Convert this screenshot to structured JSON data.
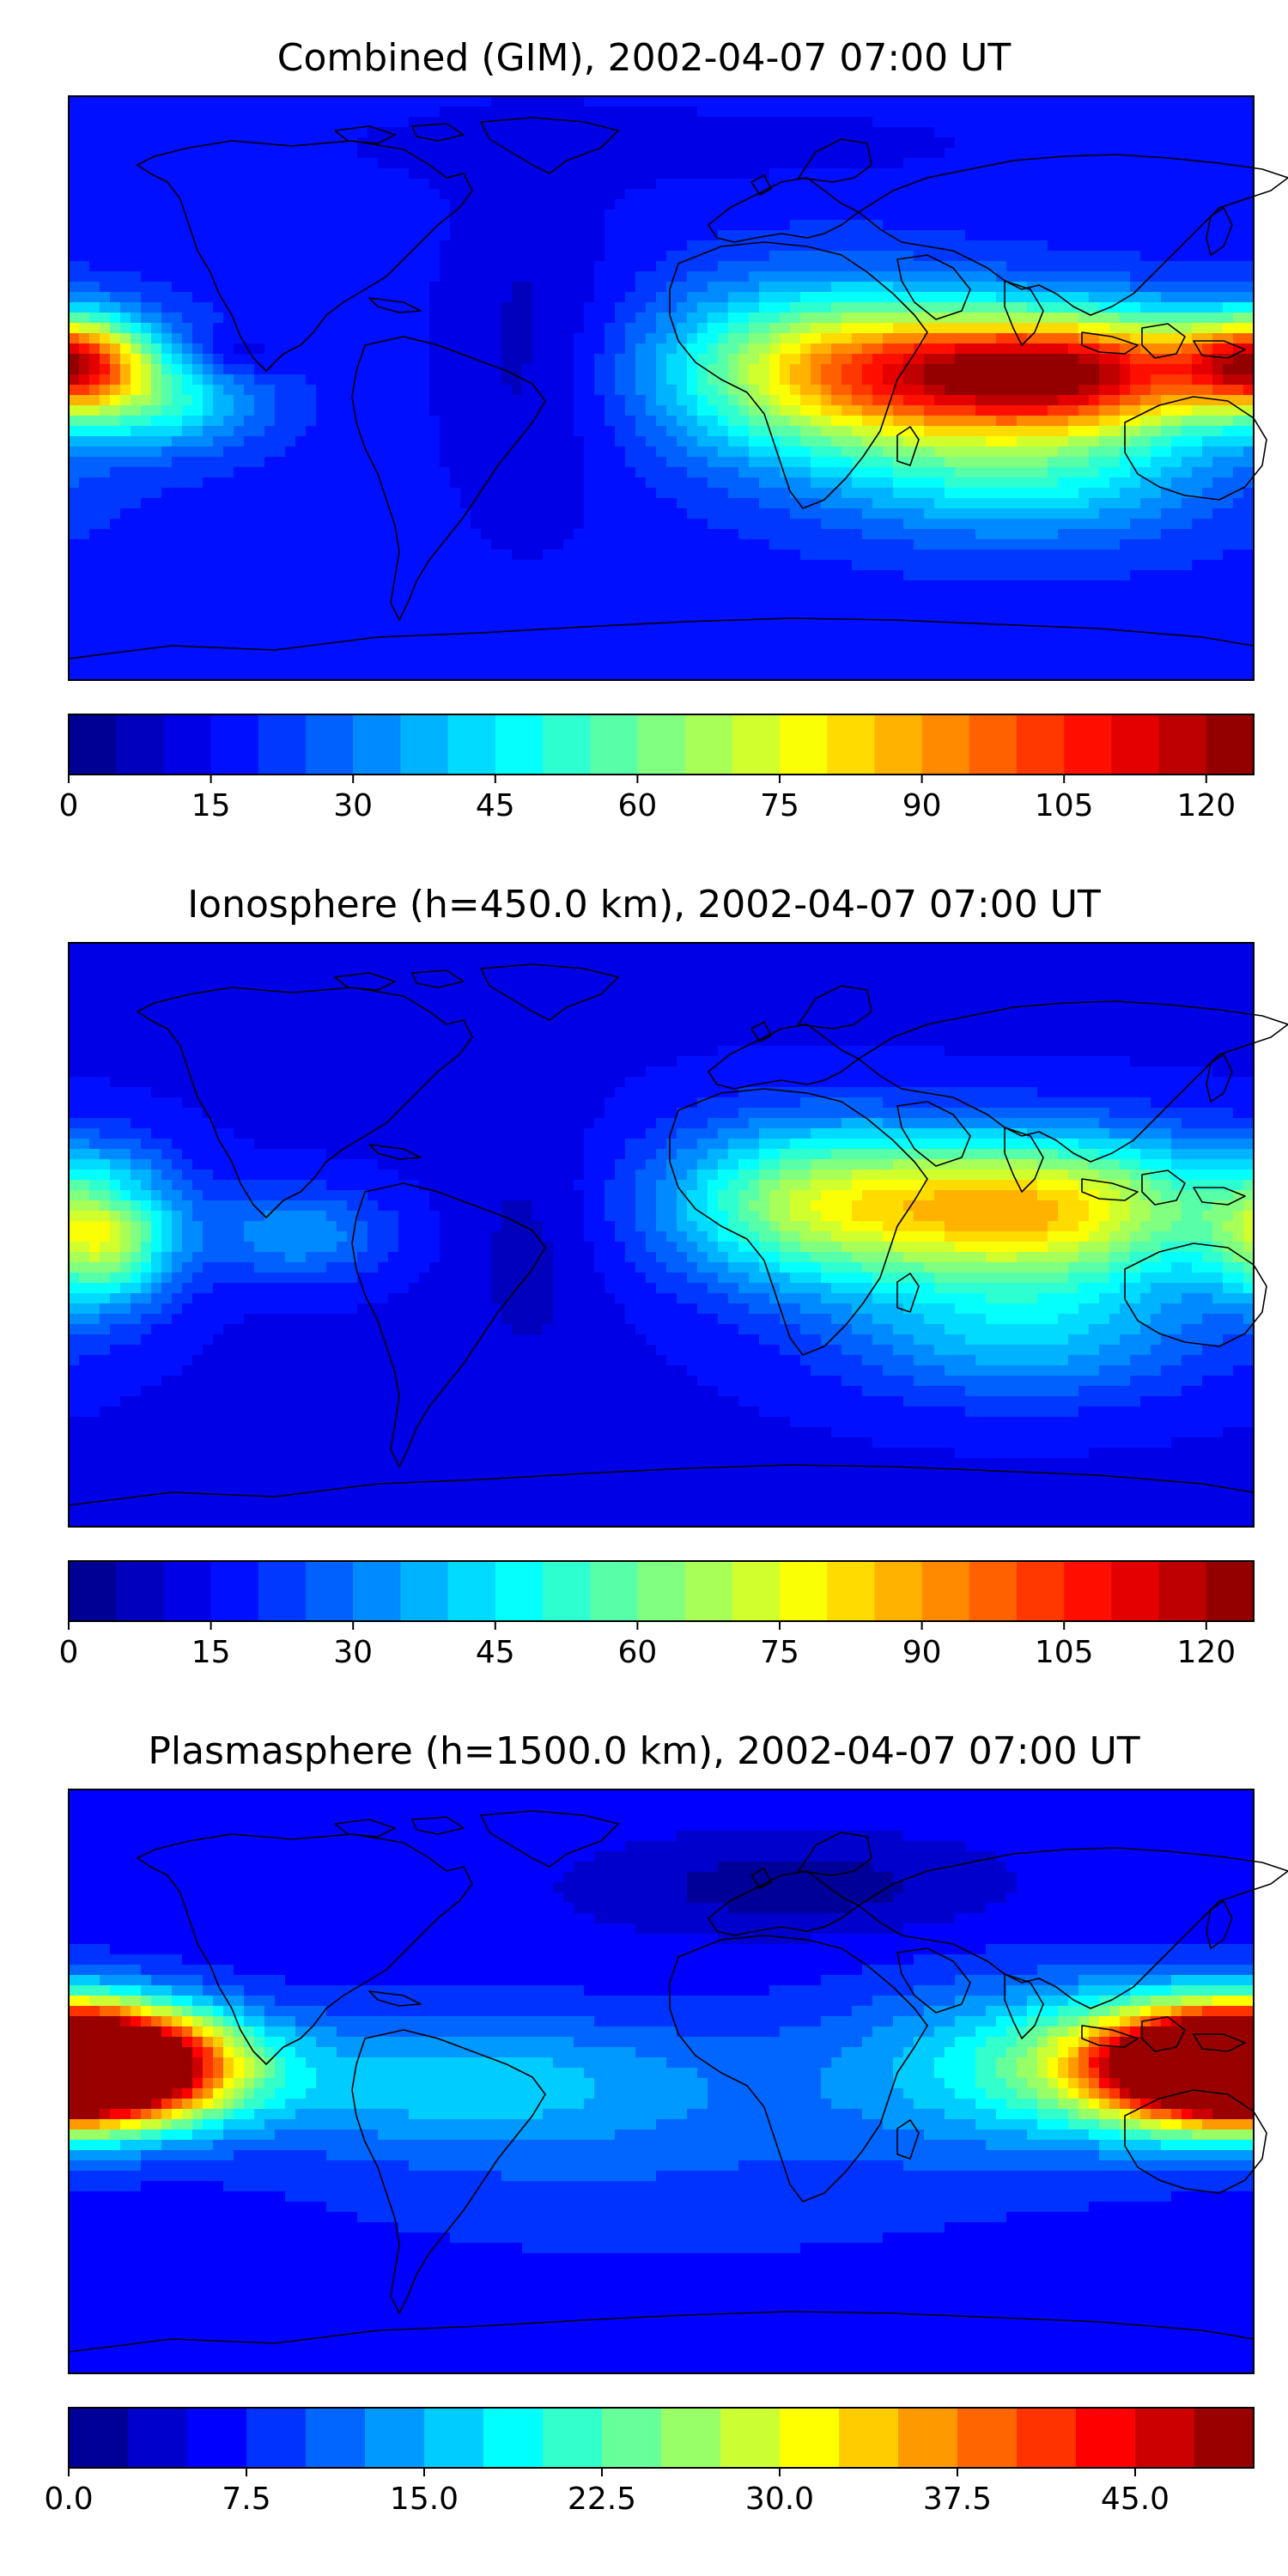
{
  "panels": [
    {
      "title": "Combined (GIM), 2002-04-07 07:00 UT",
      "colorbar": {
        "vmin": 0,
        "vmax": 125,
        "levels": 25,
        "colormap": "jet",
        "ticks": [
          "0",
          "15",
          "30",
          "45",
          "60",
          "75",
          "90",
          "105",
          "120"
        ],
        "tick_values": [
          0,
          15,
          30,
          45,
          60,
          75,
          90,
          105,
          120
        ]
      },
      "field": {
        "base": 18,
        "blobs": [
          {
            "lon": 120,
            "lat": 5,
            "amp": 100,
            "slon": 40,
            "slat": 13
          },
          {
            "lon": 50,
            "lat": 5,
            "amp": 55,
            "slon": 35,
            "slat": 18
          },
          {
            "lon": -178,
            "lat": 8,
            "amp": 70,
            "slon": 16,
            "slat": 10
          },
          {
            "lon": -150,
            "lat": -5,
            "amp": 25,
            "slon": 20,
            "slat": 10
          },
          {
            "lon": -130,
            "lat": 10,
            "amp": -10,
            "slon": 10,
            "slat": 5
          },
          {
            "lon": -40,
            "lat": 10,
            "amp": -10,
            "slon": 20,
            "slat": 40
          },
          {
            "lon": 110,
            "lat": -25,
            "amp": 30,
            "slon": 40,
            "slat": 15
          },
          {
            "lon": 0,
            "lat": 75,
            "amp": -5,
            "slon": 90,
            "slat": 10
          }
        ]
      }
    },
    {
      "title": "Ionosphere  (h=450.0 km), 2002-04-07 07:00 UT",
      "colorbar": {
        "vmin": 0,
        "vmax": 125,
        "levels": 25,
        "colormap": "jet",
        "ticks": [
          "0",
          "15",
          "30",
          "45",
          "60",
          "75",
          "90",
          "105",
          "120"
        ],
        "tick_values": [
          0,
          15,
          30,
          45,
          60,
          75,
          90,
          105,
          120
        ]
      },
      "field": {
        "base": 14,
        "blobs": [
          {
            "lon": 110,
            "lat": 8,
            "amp": 72,
            "slon": 45,
            "slat": 16
          },
          {
            "lon": 40,
            "lat": 10,
            "amp": 35,
            "slon": 30,
            "slat": 18
          },
          {
            "lon": -170,
            "lat": 0,
            "amp": 50,
            "slon": 15,
            "slat": 15
          },
          {
            "lon": -165,
            "lat": 12,
            "amp": -10,
            "slon": 8,
            "slat": 4
          },
          {
            "lon": -110,
            "lat": 0,
            "amp": 20,
            "slon": 20,
            "slat": 10
          },
          {
            "lon": -40,
            "lat": -5,
            "amp": -6,
            "slon": 15,
            "slat": 30
          },
          {
            "lon": 110,
            "lat": -30,
            "amp": 25,
            "slon": 40,
            "slat": 15
          }
        ]
      }
    },
    {
      "title": "Plasmasphere (h=1500.0 km), 2002-04-07 07:00 UT",
      "colorbar": {
        "vmin": 0,
        "vmax": 50,
        "levels": 20,
        "colormap": "jet",
        "ticks": [
          "0.0",
          "7.5",
          "15.0",
          "22.5",
          "30.0",
          "37.5",
          "45.0"
        ],
        "tick_values": [
          0,
          7.5,
          15,
          22.5,
          30,
          37.5,
          45
        ]
      },
      "field": {
        "base": 6,
        "blobs": [
          {
            "lon": 180,
            "lat": 5,
            "amp": 42,
            "slon": 30,
            "slat": 12
          },
          {
            "lon": -180,
            "lat": 5,
            "amp": 42,
            "slon": 30,
            "slat": 12
          },
          {
            "lon": 120,
            "lat": 5,
            "amp": 14,
            "slon": 45,
            "slat": 18
          },
          {
            "lon": -60,
            "lat": 0,
            "amp": 10,
            "slon": 60,
            "slat": 15
          },
          {
            "lon": 40,
            "lat": 60,
            "amp": -5,
            "slon": 40,
            "slat": 10
          },
          {
            "lon": 0,
            "lat": -30,
            "amp": 3,
            "slon": 80,
            "slat": 20
          }
        ]
      }
    }
  ]
}
